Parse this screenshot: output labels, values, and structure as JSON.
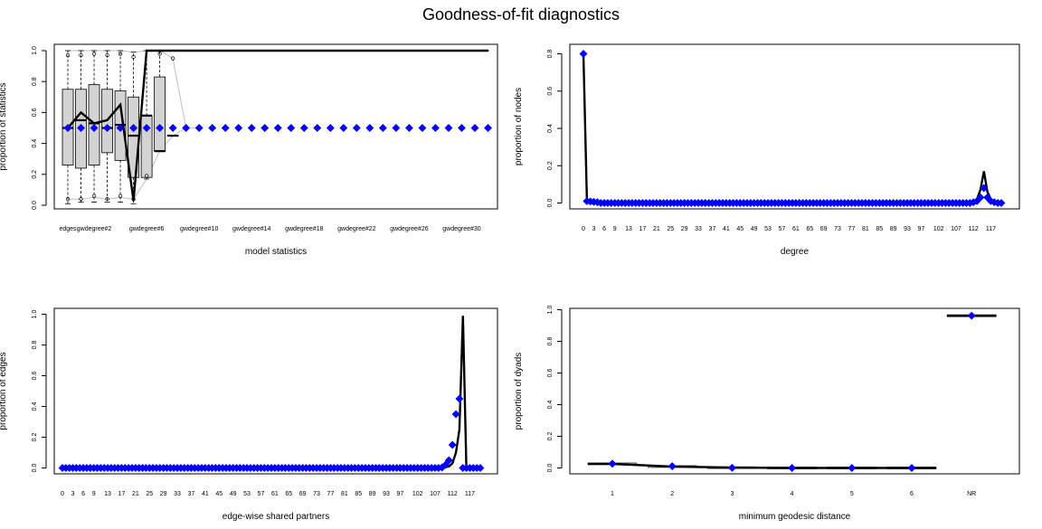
{
  "title": "Goodness-of-fit diagnostics",
  "colors": {
    "diamond": "#0000ff",
    "box_fill": "#d3d3d3",
    "line": "#000000",
    "grey_line": "#bebebe"
  },
  "chart_data": [
    {
      "id": "p1",
      "type": "boxplot",
      "xlabel": "model statistics",
      "ylabel": "proportion of statistics",
      "ylim": [
        0,
        1
      ],
      "yticks": [
        0.0,
        0.2,
        0.4,
        0.6,
        0.8,
        1.0
      ],
      "n_categories": 33,
      "tick_labels": [
        "edges",
        "gwdegree#2",
        "gwdegree#6",
        "gwdegree#10",
        "gwdegree#14",
        "gwdegree#18",
        "gwdegree#22",
        "gwdegree#26",
        "gwdegree#30"
      ],
      "tick_positions": [
        1,
        3,
        7,
        11,
        15,
        19,
        23,
        27,
        31
      ],
      "observed": [
        0.5,
        0.5,
        0.5,
        0.5,
        0.5,
        0.5,
        0.5,
        0.5,
        0.5,
        0.5,
        0.5,
        0.5,
        0.5,
        0.5,
        0.5,
        0.5,
        0.5,
        0.5,
        0.5,
        0.5,
        0.5,
        0.5,
        0.5,
        0.5,
        0.5,
        0.5,
        0.5,
        0.5,
        0.5,
        0.5,
        0.5,
        0.5,
        0.5
      ],
      "mean": [
        0.5,
        0.6,
        0.53,
        0.55,
        0.65,
        0.03,
        1.0,
        1.0,
        1.0,
        1.0,
        1.0,
        1.0,
        1.0,
        1.0,
        1.0,
        1.0,
        1.0,
        1.0,
        1.0,
        1.0,
        1.0,
        1.0,
        1.0,
        1.0,
        1.0,
        1.0,
        1.0,
        1.0,
        1.0,
        1.0,
        1.0,
        1.0,
        1.0
      ],
      "boxes": [
        {
          "i": 1,
          "q1": 0.26,
          "med": 0.5,
          "q3": 0.75,
          "lo": 0.01,
          "hi": 1.0
        },
        {
          "i": 2,
          "q1": 0.24,
          "med": 0.55,
          "q3": 0.75,
          "lo": 0.02,
          "hi": 1.0
        },
        {
          "i": 3,
          "q1": 0.26,
          "med": 0.53,
          "q3": 0.78,
          "lo": 0.02,
          "hi": 1.0
        },
        {
          "i": 4,
          "q1": 0.34,
          "med": 0.5,
          "q3": 0.75,
          "lo": 0.02,
          "hi": 1.0
        },
        {
          "i": 5,
          "q1": 0.29,
          "med": 0.52,
          "q3": 0.74,
          "lo": 0.02,
          "hi": 1.0
        },
        {
          "i": 6,
          "q1": 0.18,
          "med": 0.45,
          "q3": 0.7,
          "lo": 0.01,
          "hi": 0.99
        },
        {
          "i": 7,
          "q1": 0.18,
          "med": 0.58,
          "q3": 0.58,
          "lo": 0.17,
          "hi": 1.0
        },
        {
          "i": 8,
          "q1": 0.35,
          "med": 0.35,
          "q3": 0.83,
          "lo": 0.35,
          "hi": 1.0
        },
        {
          "i": 9,
          "q1": 0.45,
          "med": 0.45,
          "q3": 0.45,
          "lo": 0.45,
          "hi": 0.45
        }
      ],
      "outliers": [
        {
          "i": 1,
          "v": 0.97
        },
        {
          "i": 1,
          "v": 0.04
        },
        {
          "i": 2,
          "v": 0.97
        },
        {
          "i": 2,
          "v": 0.04
        },
        {
          "i": 3,
          "v": 0.98
        },
        {
          "i": 3,
          "v": 0.06
        },
        {
          "i": 4,
          "v": 0.97
        },
        {
          "i": 4,
          "v": 0.04
        },
        {
          "i": 5,
          "v": 0.98
        },
        {
          "i": 5,
          "v": 0.06
        },
        {
          "i": 6,
          "v": 0.96
        },
        {
          "i": 6,
          "v": 0.04
        },
        {
          "i": 7,
          "v": 0.19
        },
        {
          "i": 8,
          "v": 0.98
        },
        {
          "i": 9,
          "v": 0.95
        }
      ],
      "grey_upper": [
        1.0,
        1.0,
        1.0,
        1.0,
        1.0,
        0.99,
        1.0,
        1.0,
        0.95,
        0.5,
        0.5
      ],
      "grey_lower": [
        0.04,
        0.04,
        0.05,
        0.04,
        0.05,
        0.04,
        0.17,
        0.35,
        0.45,
        0.5,
        0.5
      ]
    },
    {
      "id": "p2",
      "type": "line",
      "xlabel": "degree",
      "ylabel": "proportion of nodes",
      "ylim": [
        0,
        0.8
      ],
      "yticks": [
        0.0,
        0.2,
        0.4,
        0.6,
        0.8
      ],
      "tick_labels": [
        "0",
        "3",
        "6",
        "9",
        "13",
        "17",
        "21",
        "25",
        "29",
        "33",
        "37",
        "41",
        "45",
        "49",
        "53",
        "57",
        "61",
        "65",
        "69",
        "73",
        "77",
        "81",
        "85",
        "89",
        "93",
        "97",
        "102",
        "107",
        "112",
        "117"
      ],
      "n_points": 121,
      "x_start": 0,
      "observed_nonzero": {
        "0": 0.8,
        "1": 0.01,
        "2": 0.008,
        "3": 0.006,
        "4": 0.004,
        "112": 0.004,
        "113": 0.01,
        "114": 0.03,
        "115": 0.08,
        "116": 0.03,
        "117": 0.01,
        "118": 0.004
      },
      "mean_nonzero": {
        "0": 0.8,
        "1": 0.01,
        "2": 0.006,
        "3": 0.004,
        "111": 0.003,
        "112": 0.006,
        "113": 0.02,
        "114": 0.07,
        "115": 0.17,
        "116": 0.06,
        "117": 0.02,
        "118": 0.005
      }
    },
    {
      "id": "p3",
      "type": "line",
      "xlabel": "edge-wise shared partners",
      "ylabel": "proportion of edges",
      "ylim": [
        0,
        1
      ],
      "yticks": [
        0.0,
        0.2,
        0.4,
        0.6,
        0.8,
        1.0
      ],
      "tick_labels": [
        "0",
        "3",
        "6",
        "9",
        "13",
        "17",
        "21",
        "25",
        "29",
        "33",
        "37",
        "41",
        "45",
        "49",
        "53",
        "57",
        "61",
        "65",
        "69",
        "73",
        "77",
        "81",
        "85",
        "89",
        "93",
        "97",
        "102",
        "107",
        "112",
        "117"
      ],
      "n_points": 121,
      "x_start": 0,
      "observed_nonzero": {
        "109": 0.003,
        "110": 0.02,
        "111": 0.05,
        "112": 0.15,
        "113": 0.35,
        "114": 0.45
      },
      "mean_nonzero": {
        "110": 0.005,
        "111": 0.01,
        "112": 0.03,
        "113": 0.1,
        "114": 0.25,
        "115": 0.99
      }
    },
    {
      "id": "p4",
      "type": "line",
      "xlabel": "minimum geodesic distance",
      "ylabel": "proportion of dyads",
      "ylim": [
        0,
        1
      ],
      "yticks": [
        0.0,
        0.2,
        0.4,
        0.6,
        0.8,
        1.0
      ],
      "categories": [
        "1",
        "2",
        "3",
        "4",
        "5",
        "6",
        "NR"
      ],
      "observed": [
        0.027,
        0.011,
        0.001,
        0.0,
        0.0,
        0.0,
        0.962
      ],
      "mean": [
        0.026,
        0.009,
        0.002,
        0.0,
        0.0,
        0.0,
        0.962
      ]
    }
  ]
}
